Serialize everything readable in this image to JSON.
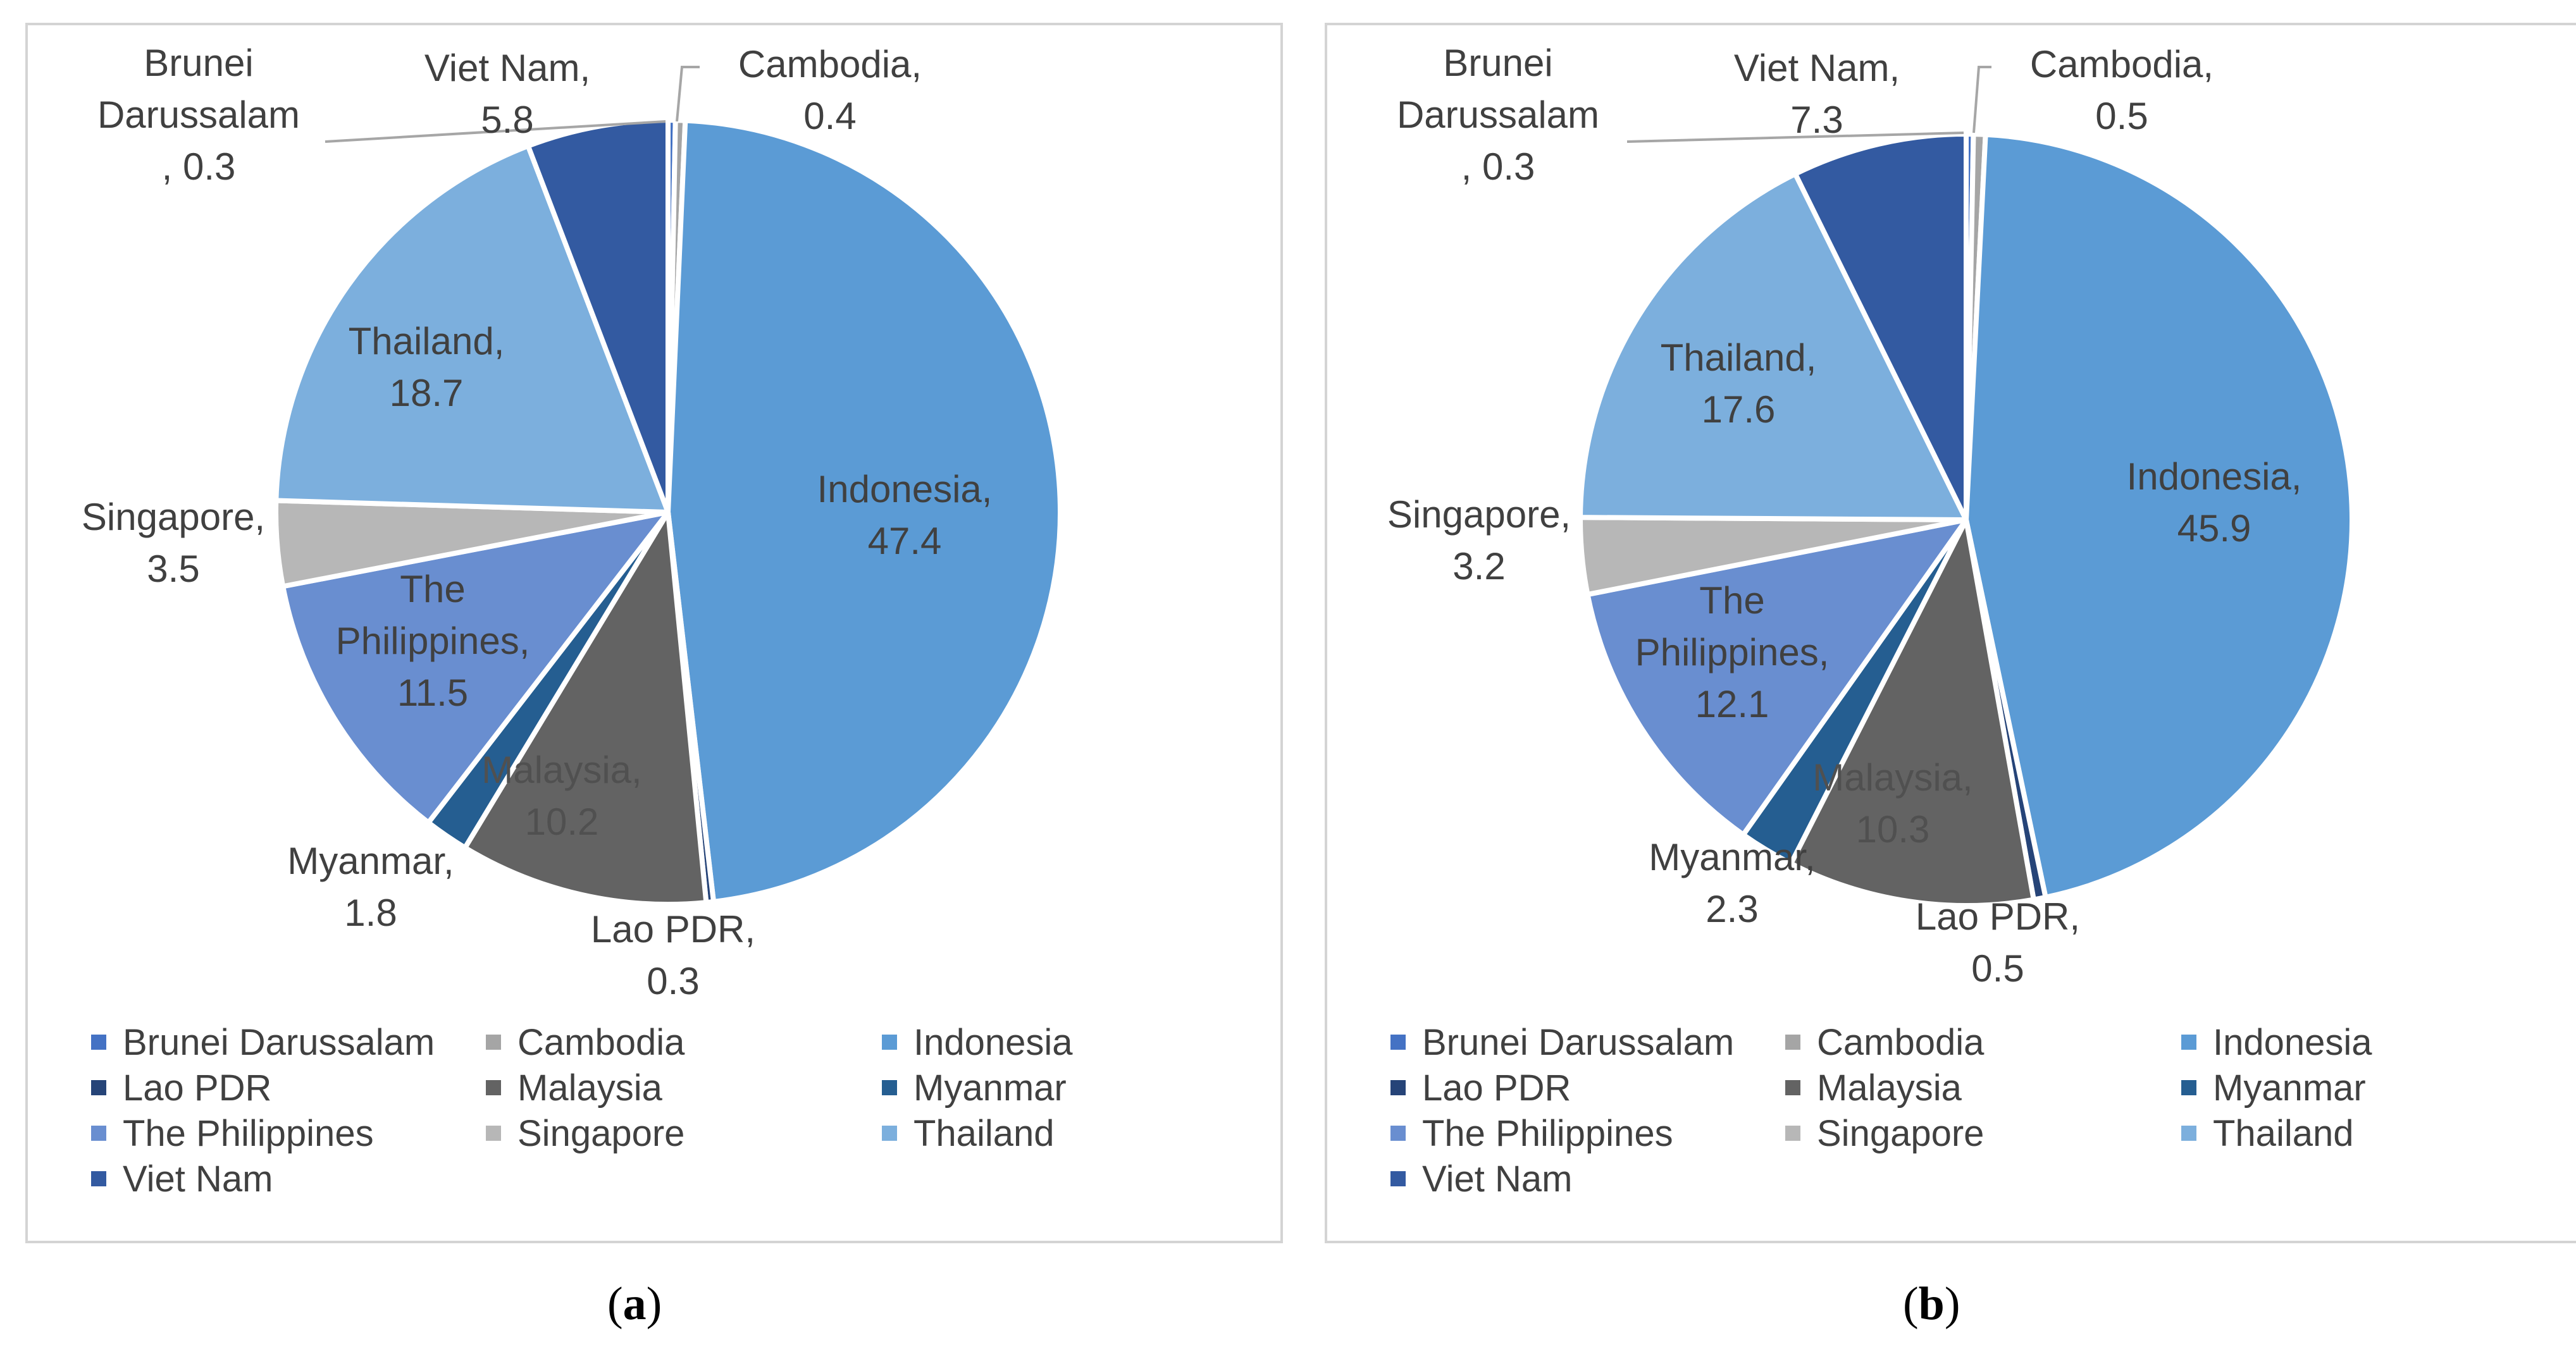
{
  "chart_data": [
    {
      "type": "pie",
      "panel": "a",
      "caption_letter": "a",
      "categories": [
        "Brunei Darussalam",
        "Cambodia",
        "Indonesia",
        "Lao PDR",
        "Malaysia",
        "Myanmar",
        "The Philippines",
        "Singapore",
        "Thailand",
        "Viet Nam"
      ],
      "values": [
        0.3,
        0.4,
        47.4,
        0.3,
        10.2,
        1.8,
        11.5,
        3.5,
        18.7,
        5.8
      ],
      "labels": [
        "Brunei Darussalam, 0.3",
        "Cambodia, 0.4",
        "Indonesia, 47.4",
        "Lao PDR, 0.3",
        "Malaysia, 10.2",
        "Myanmar, 1.8",
        "The Philippines, 11.5",
        "Singapore, 3.5",
        "Thailand, 18.7",
        "Viet Nam, 5.8"
      ],
      "value_text": [
        "0.3",
        "0.4",
        "47.4",
        "0.3",
        "10.2",
        "1.8",
        "11.5",
        "3.5",
        "18.7",
        "5.8"
      ],
      "legend_position": "bottom"
    },
    {
      "type": "pie",
      "panel": "b",
      "caption_letter": "b",
      "categories": [
        "Brunei Darussalam",
        "Cambodia",
        "Indonesia",
        "Lao PDR",
        "Malaysia",
        "Myanmar",
        "The Philippines",
        "Singapore",
        "Thailand",
        "Viet Nam"
      ],
      "values": [
        0.3,
        0.5,
        45.9,
        0.5,
        10.3,
        2.3,
        12.1,
        3.2,
        17.6,
        7.3
      ],
      "labels": [
        "Brunei Darussalam, 0.3",
        "Cambodia, 0.5",
        "Indonesia, 45.9",
        "Lao PDR, 0.5",
        "Malaysia, 10.3",
        "Myanmar, 2.3",
        "The Philippines, 12.1",
        "Singapore, 3.2",
        "Thailand, 17.6",
        "Viet Nam, 7.3"
      ],
      "value_text": [
        "0.3",
        "0.5",
        "45.9",
        "0.5",
        "10.3",
        "2.3",
        "12.1",
        "3.2",
        "17.6",
        "7.3"
      ],
      "legend_position": "bottom"
    }
  ],
  "label_lines": {
    "Brunei Darussalam": [
      "Brunei",
      "Darussalam",
      ", 0.3"
    ],
    "Cambodia": [
      "Cambodia,"
    ],
    "Indonesia": [
      "Indonesia,"
    ],
    "Lao PDR": [
      "Lao PDR,"
    ],
    "Malaysia": [
      "Malaysia,"
    ],
    "Myanmar": [
      "Myanmar,"
    ],
    "The Philippines": [
      "The",
      "Philippines,"
    ],
    "Singapore": [
      "Singapore,"
    ],
    "Thailand": [
      "Thailand,"
    ],
    "Viet Nam": [
      "Viet Nam,"
    ]
  },
  "colors": {
    "Brunei Darussalam": "#4472c4",
    "Cambodia": "#a5a5a5",
    "Indonesia": "#5b9bd5",
    "Lao PDR": "#264478",
    "Malaysia": "#636363",
    "Myanmar": "#255e91",
    "The Philippines": "#698ed0",
    "Singapore": "#b7b7b7",
    "Thailand": "#7cafdd",
    "Viet Nam": "#335aa1"
  },
  "label_text_colors": {
    "Malaysia": "#505050",
    "default": "#404040"
  },
  "legend_items": [
    "Brunei Darussalam",
    "Cambodia",
    "Indonesia",
    "Lao PDR",
    "Malaysia",
    "Myanmar",
    "The Philippines",
    "Singapore",
    "Thailand",
    "Viet Nam"
  ],
  "captions": {
    "a": {
      "open": "(",
      "letter": "a",
      "close": ")"
    },
    "b": {
      "open": "(",
      "letter": "b",
      "close": ")"
    }
  }
}
